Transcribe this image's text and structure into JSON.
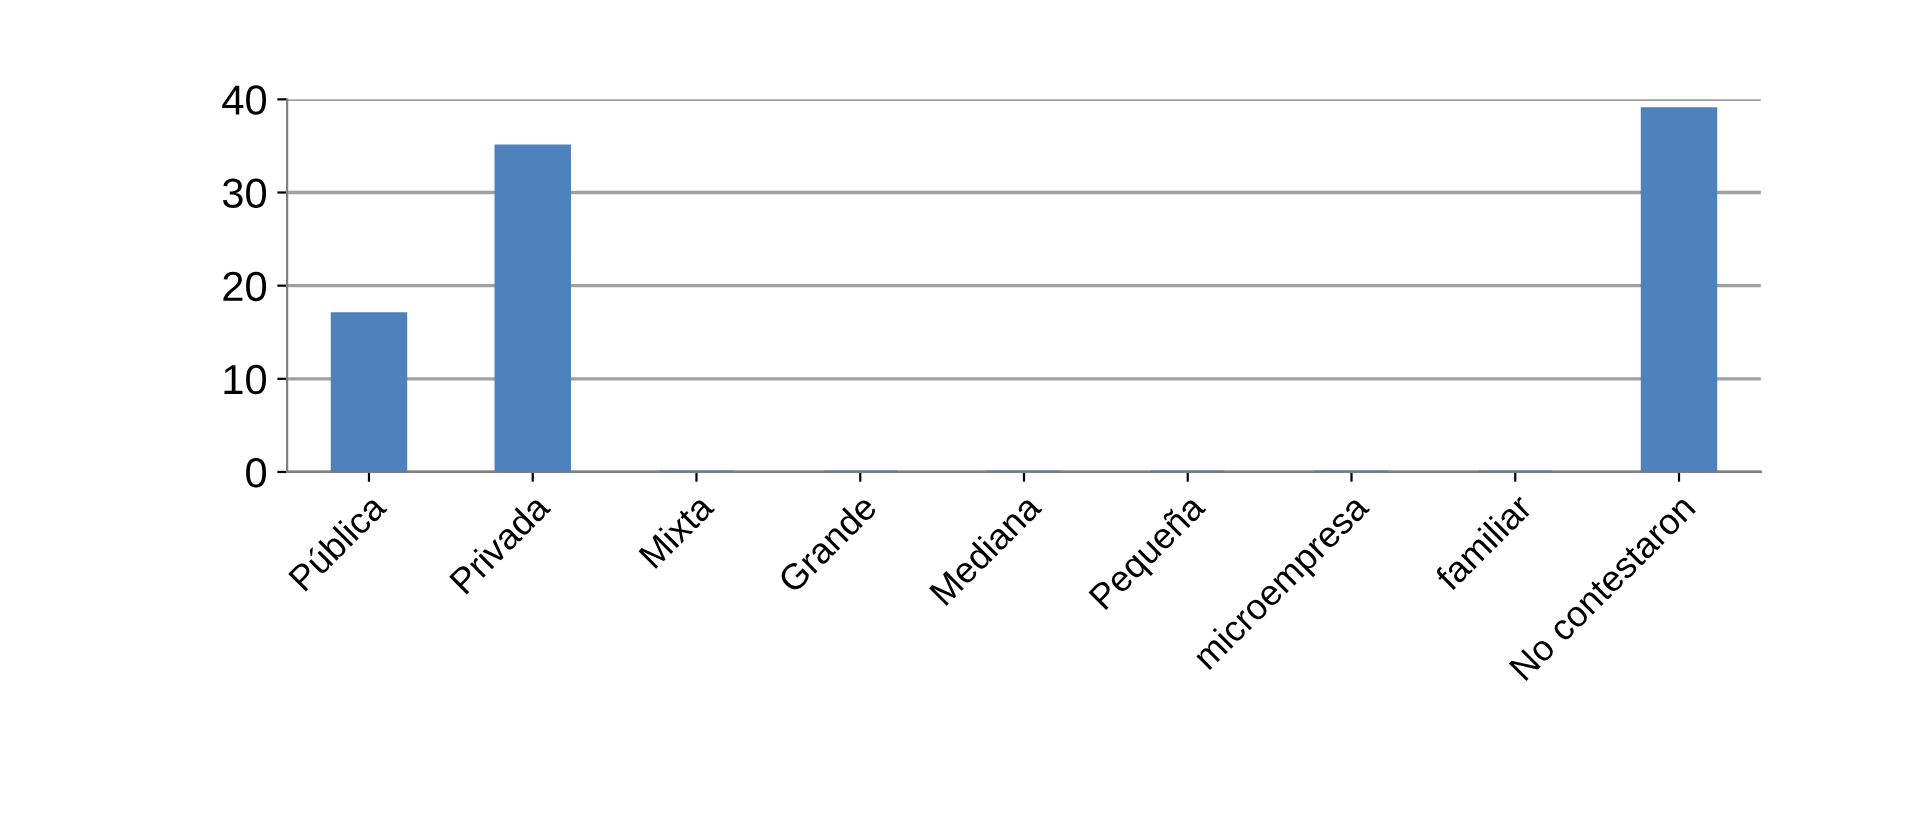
{
  "chart_data": {
    "type": "bar",
    "categories": [
      "Pública",
      "Privada",
      "Mixta",
      "Grande",
      "Mediana",
      "Pequeña",
      "microempresa",
      "familiar",
      "No contestaron"
    ],
    "values": [
      17,
      35,
      0,
      0,
      0,
      0,
      0,
      0,
      39
    ],
    "color": "#4f81bd",
    "ylim": [
      0,
      40
    ],
    "yticks": [
      0,
      10,
      20,
      30,
      40
    ],
    "grid": "y"
  }
}
